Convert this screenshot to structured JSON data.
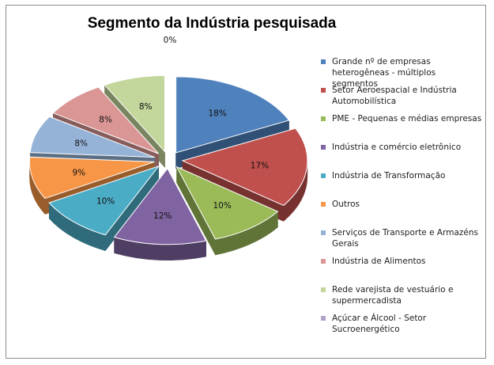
{
  "chart_data": {
    "type": "pie",
    "title": "Segmento da Indústria pesquisada",
    "categories": [
      "Grande nº de empresas heterogêneas - múltiplos segmentos",
      "Setor Aeroespacial e Indústria Automobilística",
      "PME - Pequenas e médias empresas",
      "Indústria e comércio eletrônico",
      "Indústria de Transformação",
      "Outros",
      "Serviços de Transporte e Armazéns Gerais",
      "Indústria de Alimentos",
      "Rede varejista de vestuário e supermercadista",
      "Açúcar e Álcool - Setor Sucroenergético"
    ],
    "values": [
      18,
      17,
      10,
      12,
      10,
      9,
      8,
      8,
      8,
      0
    ],
    "data_labels": [
      "18%",
      "17%",
      "10%",
      "12%",
      "10%",
      "9%",
      "8%",
      "8%",
      "8%",
      "0%"
    ],
    "colors": [
      "#4f81bd",
      "#c0504d",
      "#9bbb59",
      "#8064a2",
      "#4bacc6",
      "#f79646",
      "#95b3d7",
      "#d99694",
      "#c3d69b",
      "#b3a2c7"
    ],
    "legend_position": "right",
    "style": "exploded-3d"
  }
}
